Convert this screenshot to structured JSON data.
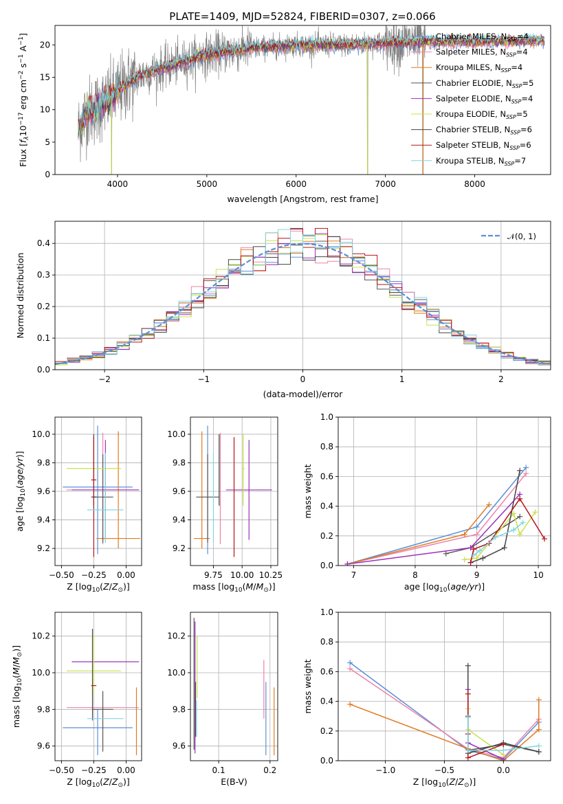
{
  "figure_title": "PLATE=1409, MJD=52824, FIBERID=0307, z=0.066",
  "colors": {
    "Chabrier MILES": "#5b8fd6",
    "Salpeter MILES": "#ee82a8",
    "Kroupa MILES": "#e07a1f",
    "Chabrier ELODIE": "#555555",
    "Salpeter ELODIE": "#9b30b8",
    "Kroupa ELODIE": "#c8e04a",
    "Chabrier STELIB": "#444444",
    "Salpeter STELIB": "#b3141a",
    "Kroupa STELIB": "#7fd6e0",
    "obs": "#808080",
    "normal": "#5b8fd6"
  },
  "chart_data": [
    {
      "id": "spectrum",
      "type": "line",
      "xlabel": "wavelength [Angstrom, rest frame]",
      "ylabel": "Flux [f_λ10^-17 erg cm^-2 s^-1 A^-1]",
      "xlim": [
        3300,
        8850
      ],
      "ylim": [
        0,
        23
      ],
      "xticks": [
        4000,
        5000,
        6000,
        7000,
        8000
      ],
      "yticks": [
        0,
        5,
        10,
        15,
        20
      ],
      "grid": false,
      "legend_position": "right",
      "legend": [
        {
          "name": "Chabrier MILES, N_SSP=4",
          "color": "#5b8fd6",
          "base": "Chabrier MILES, N",
          "sub": "SSP",
          "tail": "=4"
        },
        {
          "name": "Salpeter MILES, N_SSP=4",
          "color": "#ee82a8",
          "base": "Salpeter MILES, N",
          "sub": "SSP",
          "tail": "=4"
        },
        {
          "name": "Kroupa MILES, N_SSP=4",
          "color": "#e07a1f",
          "base": "Kroupa MILES, N",
          "sub": "SSP",
          "tail": "=4"
        },
        {
          "name": "Chabrier ELODIE, N_SSP=5",
          "color": "#555555",
          "base": "Chabrier ELODIE, N",
          "sub": "SSP",
          "tail": "=5"
        },
        {
          "name": "Salpeter ELODIE, N_SSP=4",
          "color": "#9b30b8",
          "base": "Salpeter ELODIE, N",
          "sub": "SSP",
          "tail": "=4"
        },
        {
          "name": "Kroupa ELODIE, N_SSP=5",
          "color": "#c8e04a",
          "base": "Kroupa ELODIE, N",
          "sub": "SSP",
          "tail": "=5"
        },
        {
          "name": "Chabrier STELIB, N_SSP=6",
          "color": "#444444",
          "base": "Chabrier STELIB, N",
          "sub": "SSP",
          "tail": "=6"
        },
        {
          "name": "Salpeter STELIB, N_SSP=6",
          "color": "#b3141a",
          "base": "Salpeter STELIB, N",
          "sub": "SSP",
          "tail": "=6"
        },
        {
          "name": "Kroupa STELIB, N_SSP=7",
          "color": "#7fd6e0",
          "base": "Kroupa STELIB, N",
          "sub": "SSP",
          "tail": "=7"
        }
      ],
      "continuum": [
        [
          3560,
          7
        ],
        [
          3650,
          9.5
        ],
        [
          3800,
          10.5
        ],
        [
          3950,
          12
        ],
        [
          4100,
          14
        ],
        [
          4300,
          15.5
        ],
        [
          4600,
          16.8
        ],
        [
          5000,
          18.5
        ],
        [
          5500,
          19.5
        ],
        [
          6000,
          20
        ],
        [
          6500,
          20
        ],
        [
          7000,
          20.3
        ],
        [
          7500,
          20.5
        ],
        [
          8000,
          20.5
        ],
        [
          8500,
          20.6
        ],
        [
          8780,
          20.7
        ]
      ],
      "model_range": [
        3560,
        8780
      ],
      "observed_range": [
        3560,
        7450
      ],
      "dips": [
        [
          3933,
          0
        ],
        [
          6800,
          0
        ],
        [
          7420,
          0
        ]
      ]
    },
    {
      "id": "residuals",
      "type": "histogram",
      "xlabel": "(data-model)/error",
      "ylabel": "Normed distribution",
      "xlim": [
        -2.5,
        2.5
      ],
      "ylim": [
        0,
        0.47
      ],
      "xticks": [
        -2,
        -1,
        0,
        1,
        2
      ],
      "yticks": [
        0,
        0.1,
        0.2,
        0.3,
        0.4
      ],
      "grid": true,
      "bin_width": 0.125,
      "normal_curve": {
        "label": "N(0,1)",
        "label_text": "𝒩(0, 1)",
        "mean": 0,
        "sigma": 1,
        "color": "#5b8fd6"
      }
    },
    {
      "id": "age_vs_Z",
      "type": "errorbar",
      "xlabel": "Z [log10(Z/Z⊙)]",
      "ylabel": "age [log10(age/yr)]",
      "xlim": [
        -0.55,
        0.12
      ],
      "ylim": [
        9.08,
        10.12
      ],
      "xticks": [
        -0.5,
        -0.25,
        0.0
      ],
      "yticks": [
        9.2,
        9.4,
        9.6,
        9.8,
        10.0
      ],
      "grid": true,
      "points": [
        {
          "model": "Chabrier MILES",
          "x": -0.22,
          "xerr": 0.27,
          "y": 9.63,
          "yerr": [
            0.47,
            0.43
          ]
        },
        {
          "model": "Salpeter MILES",
          "x": -0.18,
          "xerr": 0.28,
          "y": 9.61,
          "yerr": [
            0.38,
            0.4
          ]
        },
        {
          "model": "Kroupa MILES",
          "x": -0.06,
          "xerr": 0.17,
          "y": 9.27,
          "yerr": [
            0.07,
            0.75
          ]
        },
        {
          "model": "Chabrier ELODIE",
          "x": -0.18,
          "xerr": 0.08,
          "y": 9.56,
          "yerr": [
            0.32,
            0.3
          ]
        },
        {
          "model": "Salpeter ELODIE",
          "x": -0.16,
          "xerr": 0.26,
          "y": 9.61,
          "yerr": [
            0.35,
            0.35
          ]
        },
        {
          "model": "Kroupa ELODIE",
          "x": -0.25,
          "xerr": 0.21,
          "y": 9.76,
          "yerr": [
            0.26,
            0.24
          ]
        },
        {
          "model": "Chabrier STELIB",
          "x": -0.25,
          "xerr": 0.02,
          "y": 9.56,
          "yerr": [
            0.06,
            0.44
          ]
        },
        {
          "model": "Salpeter STELIB",
          "x": -0.25,
          "xerr": 0.02,
          "y": 9.68,
          "yerr": [
            0.54,
            0.3
          ]
        },
        {
          "model": "Kroupa STELIB",
          "x": -0.16,
          "xerr": 0.14,
          "y": 9.47,
          "yerr": [
            0.23,
            0.4
          ]
        }
      ]
    },
    {
      "id": "age_vs_mass",
      "type": "errorbar",
      "xlabel": "mass [log10(M/M⊙)]",
      "ylabel": "",
      "xlim": [
        9.55,
        10.31
      ],
      "ylim": [
        9.08,
        10.12
      ],
      "xticks": [
        9.75,
        10.0,
        10.25
      ],
      "yticks": [
        9.2,
        9.4,
        9.6,
        9.8,
        10.0
      ],
      "grid": true,
      "points": [
        {
          "model": "Chabrier MILES",
          "x": 9.7,
          "xerr": 0.0,
          "y": 9.63,
          "yerr": [
            0.47,
            0.43
          ]
        },
        {
          "model": "Salpeter MILES",
          "x": 9.81,
          "xerr": 0.0,
          "y": 9.61,
          "yerr": [
            0.38,
            0.4
          ]
        },
        {
          "model": "Kroupa MILES",
          "x": 9.65,
          "xerr": 0.07,
          "y": 9.27,
          "yerr": [
            0.07,
            0.75
          ]
        },
        {
          "model": "Chabrier ELODIE",
          "x": 9.7,
          "xerr": 0.1,
          "y": 9.56,
          "yerr": [
            0.32,
            0.3
          ]
        },
        {
          "model": "Salpeter ELODIE",
          "x": 10.06,
          "xerr": 0.2,
          "y": 9.61,
          "yerr": [
            0.35,
            0.35
          ]
        },
        {
          "model": "Kroupa ELODIE",
          "x": 10.01,
          "xerr": 0.01,
          "y": 9.76,
          "yerr": [
            0.26,
            0.24
          ]
        },
        {
          "model": "Chabrier STELIB",
          "x": 9.8,
          "xerr": 0.0,
          "y": 9.56,
          "yerr": [
            0.06,
            0.44
          ]
        },
        {
          "model": "Salpeter STELIB",
          "x": 9.93,
          "xerr": 0.0,
          "y": 9.68,
          "yerr": [
            0.54,
            0.3
          ]
        },
        {
          "model": "Kroupa STELIB",
          "x": 9.75,
          "xerr": 0.0,
          "y": 9.47,
          "yerr": [
            0.23,
            0.4
          ]
        }
      ]
    },
    {
      "id": "weight_vs_age",
      "type": "line",
      "xlabel": "age [log10(age/yr)]",
      "ylabel": "mass weight",
      "xlim": [
        6.75,
        10.2
      ],
      "ylim": [
        0,
        1.0
      ],
      "xticks": [
        7,
        8,
        9,
        10
      ],
      "yticks": [
        0.0,
        0.2,
        0.4,
        0.6,
        0.8,
        1.0
      ],
      "grid": true,
      "series": [
        {
          "model": "Chabrier MILES",
          "x": [
            6.9,
            9.0,
            9.8
          ],
          "y": [
            0.01,
            0.26,
            0.66
          ]
        },
        {
          "model": "Salpeter MILES",
          "x": [
            6.9,
            9.0,
            9.8
          ],
          "y": [
            0.01,
            0.21,
            0.62
          ]
        },
        {
          "model": "Kroupa MILES",
          "x": [
            6.9,
            8.8,
            9.2
          ],
          "y": [
            0.01,
            0.21,
            0.41
          ]
        },
        {
          "model": "Chabrier ELODIE",
          "x": [
            8.5,
            8.9,
            9.7
          ],
          "y": [
            0.08,
            0.12,
            0.33
          ]
        },
        {
          "model": "Salpeter ELODIE",
          "x": [
            6.9,
            8.9,
            9.7
          ],
          "y": [
            0.01,
            0.12,
            0.48
          ]
        },
        {
          "model": "Kroupa ELODIE",
          "x": [
            8.8,
            9.0,
            9.6,
            9.7,
            9.95
          ],
          "y": [
            0.04,
            0.05,
            0.35,
            0.21,
            0.36
          ]
        },
        {
          "model": "Chabrier STELIB",
          "x": [
            8.9,
            9.1,
            9.45,
            9.7
          ],
          "y": [
            0.02,
            0.05,
            0.12,
            0.64
          ]
        },
        {
          "model": "Salpeter STELIB",
          "x": [
            8.9,
            8.95,
            9.2,
            9.7,
            10.1
          ],
          "y": [
            0.02,
            0.11,
            0.15,
            0.45,
            0.18
          ]
        },
        {
          "model": "Kroupa STELIB",
          "x": [
            8.95,
            9.05,
            9.3,
            9.6,
            9.75
          ],
          "y": [
            0.07,
            0.1,
            0.19,
            0.24,
            0.29
          ]
        }
      ]
    },
    {
      "id": "mass_vs_Z",
      "type": "errorbar",
      "xlabel": "Z [log10(Z/Z⊙)]",
      "ylabel": "mass [log10(M/M⊙)]",
      "xlim": [
        -0.55,
        0.12
      ],
      "ylim": [
        9.52,
        10.33
      ],
      "xticks": [
        -0.5,
        -0.25,
        0.0
      ],
      "yticks": [
        9.6,
        9.8,
        10.0,
        10.2
      ],
      "grid": true,
      "points": [
        {
          "model": "Chabrier MILES",
          "x": -0.22,
          "xerr": 0.27,
          "y": 9.7,
          "yerr": [
            0.15,
            0.1
          ]
        },
        {
          "model": "Salpeter MILES",
          "x": -0.18,
          "xerr": 0.28,
          "y": 9.81,
          "yerr": [
            0.0,
            0.0
          ]
        },
        {
          "model": "Kroupa MILES",
          "x": 0.08,
          "xerr": 0.0,
          "y": 9.55,
          "yerr": [
            0.0,
            0.37
          ]
        },
        {
          "model": "Chabrier ELODIE",
          "x": -0.18,
          "xerr": 0.08,
          "y": 9.8,
          "yerr": [
            0.23,
            0.1
          ]
        },
        {
          "model": "Salpeter ELODIE",
          "x": -0.16,
          "xerr": 0.26,
          "y": 10.06,
          "yerr": [
            0.0,
            0.0
          ]
        },
        {
          "model": "Kroupa ELODIE",
          "x": -0.25,
          "xerr": 0.21,
          "y": 10.01,
          "yerr": [
            0.13,
            0.19
          ]
        },
        {
          "model": "Chabrier STELIB",
          "x": -0.26,
          "xerr": 0.0,
          "y": 9.8,
          "yerr": [
            0.06,
            0.44
          ]
        },
        {
          "model": "Salpeter STELIB",
          "x": -0.25,
          "xerr": 0.02,
          "y": 9.93,
          "yerr": [
            0.0,
            0.0
          ]
        },
        {
          "model": "Kroupa STELIB",
          "x": -0.16,
          "xerr": 0.14,
          "y": 9.75,
          "yerr": [
            0.0,
            0.0
          ]
        }
      ]
    },
    {
      "id": "mass_vs_ebv",
      "type": "errorbar",
      "xlabel": "E(B-V)",
      "ylabel": "",
      "xlim": [
        0.045,
        0.215
      ],
      "ylim": [
        9.52,
        10.33
      ],
      "xticks": [
        0.1,
        0.2
      ],
      "yticks": [
        9.6,
        9.8,
        10.0,
        10.2
      ],
      "grid": true,
      "points": [
        {
          "model": "Chabrier MILES",
          "x": 0.192,
          "xerr": 0.0,
          "y": 9.7,
          "yerr": [
            0.15,
            0.25
          ]
        },
        {
          "model": "Salpeter MILES",
          "x": 0.188,
          "xerr": 0.0,
          "y": 9.81,
          "yerr": [
            0.06,
            0.26
          ]
        },
        {
          "model": "Kroupa MILES",
          "x": 0.208,
          "xerr": 0.0,
          "y": 9.55,
          "yerr": [
            0.0,
            0.37
          ]
        },
        {
          "model": "Chabrier ELODIE",
          "x": 0.052,
          "xerr": 0.0,
          "y": 9.8,
          "yerr": [
            0.22,
            0.5
          ]
        },
        {
          "model": "Salpeter ELODIE",
          "x": 0.054,
          "xerr": 0.0,
          "y": 10.06,
          "yerr": [
            0.5,
            0.22
          ]
        },
        {
          "model": "Kroupa ELODIE",
          "x": 0.058,
          "xerr": 0.0,
          "y": 10.01,
          "yerr": [
            0.15,
            0.19
          ]
        },
        {
          "model": "Chabrier STELIB",
          "x": 0.055,
          "xerr": 0.0,
          "y": 9.8,
          "yerr": [
            0.15,
            0.15
          ]
        },
        {
          "model": "Salpeter STELIB",
          "x": 0.056,
          "xerr": 0.0,
          "y": 9.93,
          "yerr": [
            0.0,
            0.0
          ]
        },
        {
          "model": "Kroupa STELIB",
          "x": 0.057,
          "xerr": 0.0,
          "y": 9.75,
          "yerr": [
            0.1,
            0.1
          ]
        }
      ]
    },
    {
      "id": "weight_vs_Z",
      "type": "line",
      "xlabel": "Z [log10(Z/Z⊙)]",
      "ylabel": "mass weight",
      "xlim": [
        -1.4,
        0.4
      ],
      "ylim": [
        0,
        1.0
      ],
      "xticks": [
        -1.0,
        -0.5,
        0.0
      ],
      "yticks": [
        0.0,
        0.2,
        0.4,
        0.6,
        0.8,
        1.0
      ],
      "grid": true,
      "series": [
        {
          "model": "Chabrier MILES",
          "x": [
            -1.3,
            -0.3,
            0.0,
            0.3
          ],
          "y": [
            0.66,
            0.07,
            0.01,
            0.26
          ]
        },
        {
          "model": "Salpeter MILES",
          "x": [
            -1.3,
            -0.3,
            0.0,
            0.3
          ],
          "y": [
            0.62,
            0.08,
            0.02,
            0.28
          ]
        },
        {
          "model": "Kroupa MILES",
          "x": [
            -1.3,
            -0.3,
            0.0,
            0.3,
            0.3
          ],
          "y": [
            0.38,
            0.08,
            0.0,
            0.21,
            0.41
          ]
        },
        {
          "model": "Chabrier ELODIE",
          "x": [
            -0.3,
            -0.3,
            0.0,
            0.3
          ],
          "y": [
            0.3,
            0.07,
            0.11,
            0.06
          ]
        },
        {
          "model": "Salpeter ELODIE",
          "x": [
            -0.3,
            -0.3,
            0.0
          ],
          "y": [
            0.48,
            0.12,
            0.01
          ]
        },
        {
          "model": "Kroupa ELODIE",
          "x": [
            -0.3,
            -0.3,
            0.0
          ],
          "y": [
            0.35,
            0.21,
            0.04
          ]
        },
        {
          "model": "Chabrier STELIB",
          "x": [
            -0.3,
            -0.3,
            0.0,
            0.3
          ],
          "y": [
            0.64,
            0.05,
            0.12,
            0.06
          ]
        },
        {
          "model": "Salpeter STELIB",
          "x": [
            -0.3,
            -0.3,
            -0.3,
            0.0
          ],
          "y": [
            0.45,
            0.18,
            0.02,
            0.11
          ]
        },
        {
          "model": "Kroupa STELIB",
          "x": [
            -0.3,
            -0.3,
            0.0,
            0.3
          ],
          "y": [
            0.29,
            0.07,
            0.07,
            0.1
          ]
        }
      ]
    }
  ]
}
